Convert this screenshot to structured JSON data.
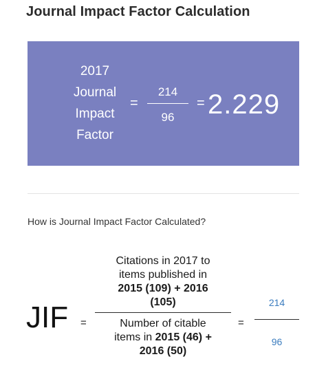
{
  "page": {
    "title": "Journal Impact Factor Calculation",
    "subheading": "How is Journal Impact Factor Calculated?"
  },
  "result_card": {
    "label_line1": "2017",
    "label_line2": "Journal",
    "label_line3": "Impact",
    "label_line4": "Factor",
    "equals": "=",
    "numerator": "214",
    "denominator": "96",
    "result": "2.229",
    "background_color": "#7a80c0"
  },
  "formula": {
    "symbol": "JIF",
    "equals": "=",
    "numerator_line1": "Citations in 2017 to",
    "numerator_line2": "items published in",
    "numerator_line3": "2015 (109) + 2016",
    "numerator_line4": "(105)",
    "denominator_line1": "Number of citable",
    "denominator_line2_prefix": "items in ",
    "denominator_line2_bold": "2015 (46) +",
    "denominator_line3": "2016 (50)",
    "value_numerator": "214",
    "value_denominator": "96",
    "value_color": "#3c7dbf"
  }
}
